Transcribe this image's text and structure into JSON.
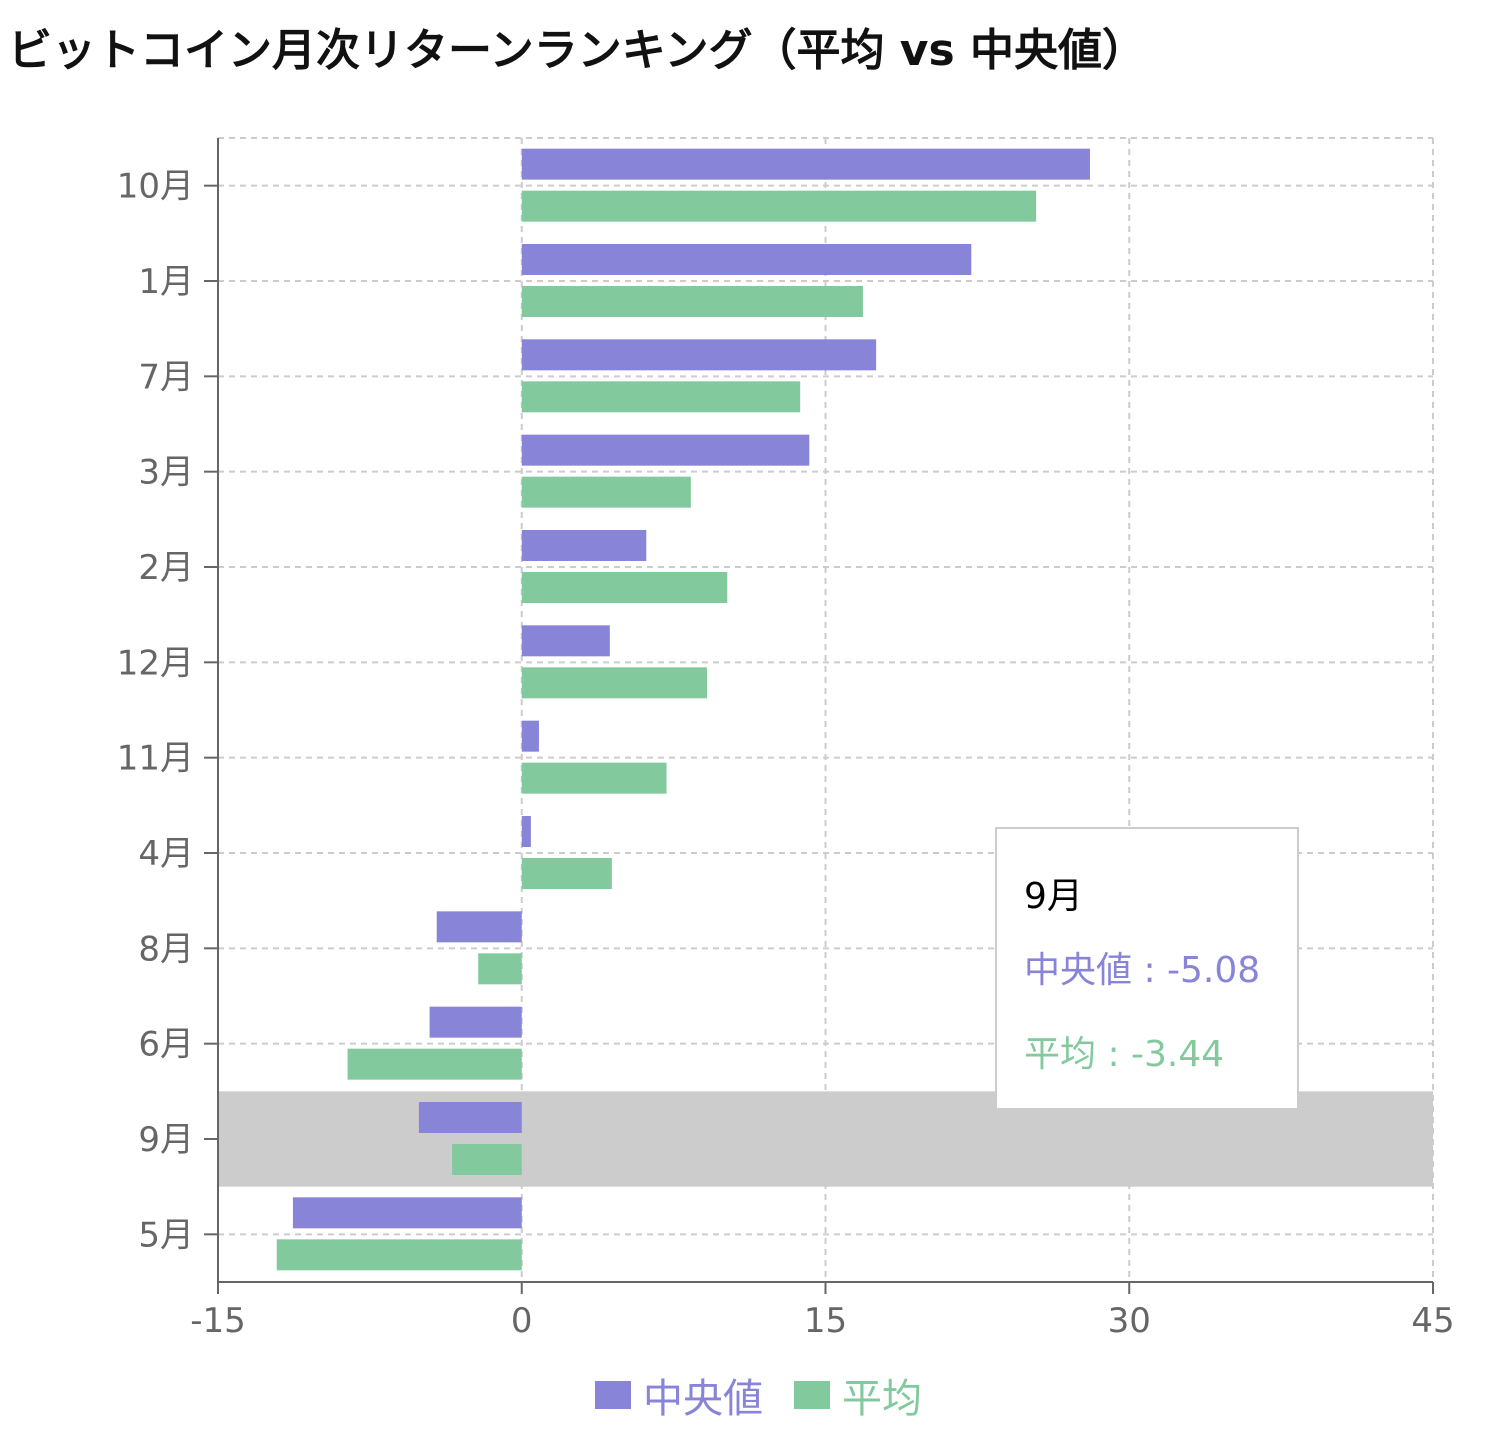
{
  "title": "ビットコイン月次リターンランキング（平均 vs 中央値）",
  "colors": {
    "median": "#8884d8",
    "mean": "#82ca9d",
    "highlight": "#cccccc",
    "grid": "#cccccc",
    "axis": "#666666"
  },
  "chart_data": {
    "type": "bar",
    "orientation": "horizontal",
    "categories": [
      "10月",
      "1月",
      "7月",
      "3月",
      "2月",
      "12月",
      "11月",
      "4月",
      "8月",
      "6月",
      "9月",
      "5月"
    ],
    "series": [
      {
        "name": "中央値",
        "values": [
          28.06,
          22.2,
          17.5,
          14.2,
          6.15,
          4.35,
          0.85,
          0.45,
          -4.2,
          -4.55,
          -5.08,
          -11.3
        ]
      },
      {
        "name": "平均",
        "values": [
          25.4,
          16.85,
          13.75,
          8.35,
          10.15,
          9.15,
          7.15,
          4.45,
          -2.15,
          -8.6,
          -3.44,
          -12.1
        ]
      }
    ],
    "xlim": [
      -15,
      45
    ],
    "xticks": [
      "-15",
      "0",
      "15",
      "30",
      "45"
    ],
    "grid": true,
    "grid_style": "dashed",
    "legend_position": "bottom-center",
    "highlighted_category": "9月"
  },
  "tooltip": {
    "label": "9月",
    "rows": [
      {
        "key": "中央値",
        "sep": " : ",
        "value": "-5.08"
      },
      {
        "key": "平均",
        "sep": " : ",
        "value": "-3.44"
      }
    ]
  },
  "legend": {
    "items": [
      "中央値",
      "平均"
    ]
  }
}
